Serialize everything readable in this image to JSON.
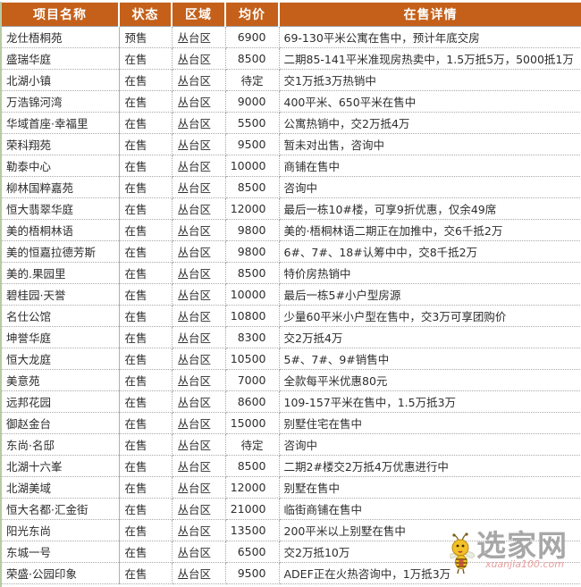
{
  "table": {
    "headers": [
      "项目名称",
      "状态",
      "区域",
      "均价",
      "在售详情"
    ],
    "rows": [
      {
        "name": "龙仕梧桐苑",
        "status": "预售",
        "region": "丛台区",
        "price": "6900",
        "detail": "69-130平米公寓在售中，预计年底交房"
      },
      {
        "name": "盛瑞华庭",
        "status": "在售",
        "region": "丛台区",
        "price": "8500",
        "detail": "二期85-141平米准现房热卖中，1.5万抵5万，5000抵1万"
      },
      {
        "name": "北湖小镇",
        "status": "在售",
        "region": "丛台区",
        "price": "待定",
        "detail": "交1万抵3万热销中"
      },
      {
        "name": "万浩锦河湾",
        "status": "在售",
        "region": "丛台区",
        "price": "9000",
        "detail": "400平米、650平米在售中"
      },
      {
        "name": "华域首座·幸福里",
        "status": "在售",
        "region": "丛台区",
        "price": "5500",
        "detail": "公寓热销中，交2万抵4万"
      },
      {
        "name": "荣科翔苑",
        "status": "在售",
        "region": "丛台区",
        "price": "9500",
        "detail": "暂未对出售，咨询中"
      },
      {
        "name": "勒泰中心",
        "status": "在售",
        "region": "丛台区",
        "price": "10000",
        "detail": "商铺在售中"
      },
      {
        "name": "柳林国粹嘉苑",
        "status": "在售",
        "region": "丛台区",
        "price": "8500",
        "detail": "咨询中"
      },
      {
        "name": "恒大翡翠华庭",
        "status": "在售",
        "region": "丛台区",
        "price": "12000",
        "detail": "最后一栋10#楼，可享9折优惠，仅余49席"
      },
      {
        "name": "美的梧桐林语",
        "status": "在售",
        "region": "丛台区",
        "price": "9800",
        "detail": "美的·梧桐林语二期正在加推中，交6千抵2万"
      },
      {
        "name": "美的恒嘉拉德芳斯",
        "status": "在售",
        "region": "丛台区",
        "price": "9800",
        "detail": "6#、7#、18#认筹中中，交8千抵2万"
      },
      {
        "name": "美的.果园里",
        "status": "在售",
        "region": "丛台区",
        "price": "8500",
        "detail": "特价房热销中"
      },
      {
        "name": "碧桂园·天誉",
        "status": "在售",
        "region": "丛台区",
        "price": "10000",
        "detail": "最后一栋5#小户型房源"
      },
      {
        "name": "名仕公馆",
        "status": "在售",
        "region": "丛台区",
        "price": "10800",
        "detail": "少量60平米小户型在售中，交3万可享团购价"
      },
      {
        "name": "坤誉华庭",
        "status": "在售",
        "region": "丛台区",
        "price": "8300",
        "detail": "交2万抵4万"
      },
      {
        "name": "恒大龙庭",
        "status": "在售",
        "region": "丛台区",
        "price": "10500",
        "detail": "5#、7#、9#销售中"
      },
      {
        "name": "美意苑",
        "status": "在售",
        "region": "丛台区",
        "price": "7000",
        "detail": "全款每平米优惠80元"
      },
      {
        "name": "远邦花园",
        "status": "在售",
        "region": "丛台区",
        "price": "8600",
        "detail": "109-157平米在售中，1.5万抵3万"
      },
      {
        "name": "御赵金台",
        "status": "在售",
        "region": "丛台区",
        "price": "15000",
        "detail": "别墅住宅在售中"
      },
      {
        "name": "东尚·名邸",
        "status": "在售",
        "region": "丛台区",
        "price": "待定",
        "detail": "咨询中"
      },
      {
        "name": "北湖十六峯",
        "status": "在售",
        "region": "丛台区",
        "price": "8500",
        "detail": "二期2#楼交2万抵4万优惠进行中"
      },
      {
        "name": "北湖美域",
        "status": "在售",
        "region": "丛台区",
        "price": "12000",
        "detail": "别墅在售中"
      },
      {
        "name": "恒大名都·汇金街",
        "status": "在售",
        "region": "丛台区",
        "price": "21000",
        "detail": "临街商铺在售中"
      },
      {
        "name": "阳光东尚",
        "status": "在售",
        "region": "丛台区",
        "price": "13500",
        "detail": "200平米以上别墅在售中"
      },
      {
        "name": "东城一号",
        "status": "在售",
        "region": "丛台区",
        "price": "6500",
        "detail": "交2万抵10万"
      },
      {
        "name": "荣盛·公园印象",
        "status": "在售",
        "region": "丛台区",
        "price": "9500",
        "detail": "ADEF正在火热咨询中，1万抵3万"
      }
    ],
    "tbd_value": "待定"
  },
  "watermark": {
    "site_name": "选家网",
    "site_url": "xuanjia100.com",
    "icon": "bee-mascot-icon"
  },
  "colors": {
    "header_bg": "#c4601a",
    "header_text": "#ffffff",
    "cell_text": "#2d2d2d",
    "grid_line": "#a9a9a9",
    "green_gridline": "#a4bd8b",
    "watermark_text": "#a0a0a0",
    "watermark_url": "#e79d9d",
    "bee_yellow": "#f2c028"
  }
}
